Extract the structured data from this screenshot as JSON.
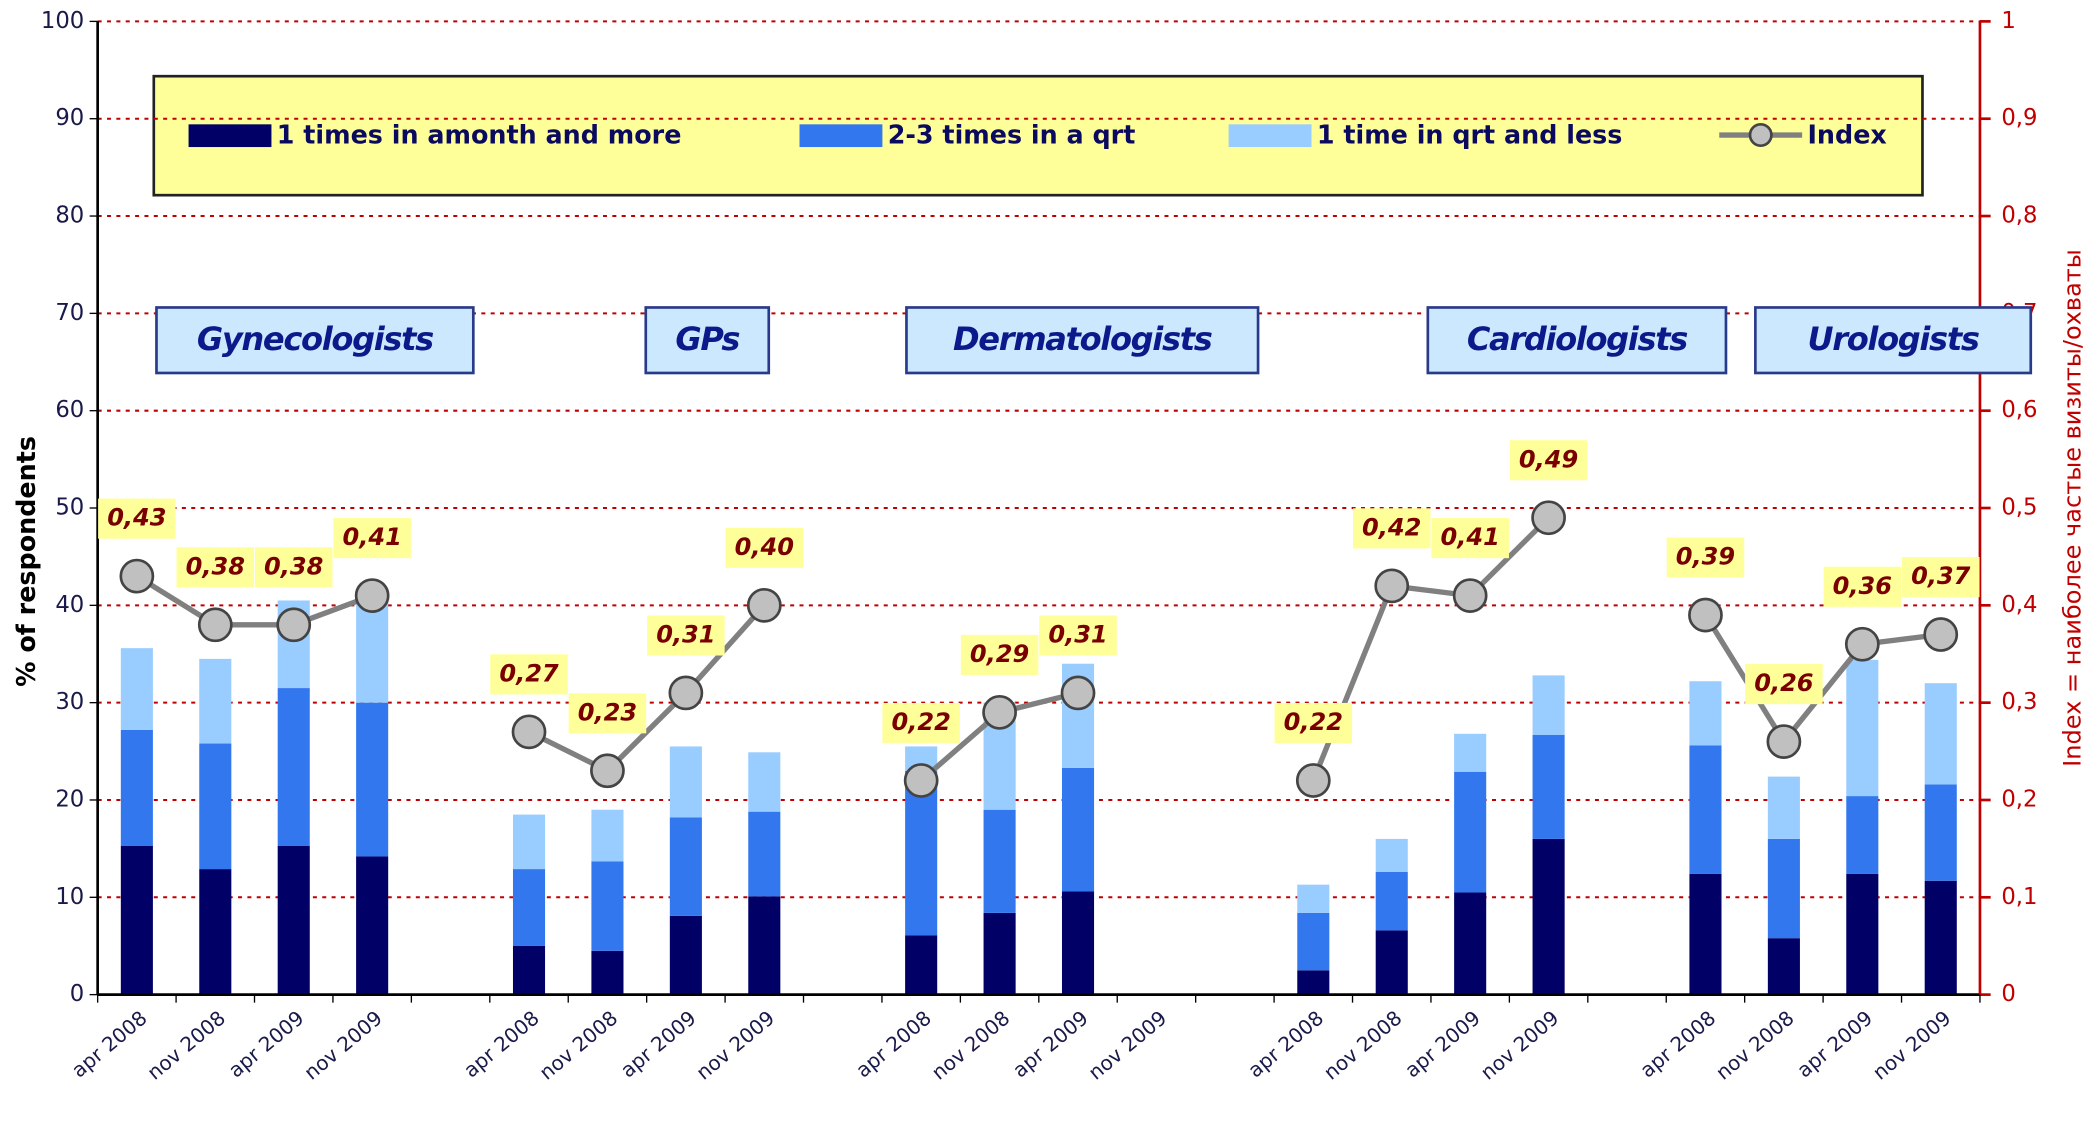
{
  "chart_data": {
    "type": "bar",
    "categories": [
      "apr 2008",
      "nov 2008",
      "apr 2009",
      "nov 2009",
      null,
      "apr 2008",
      "nov 2008",
      "apr 2009",
      "nov 2009",
      null,
      "apr 2008",
      "nov 2008",
      "apr 2009",
      "nov 2009",
      null,
      "apr 2008",
      "nov 2008",
      "apr 2009",
      "nov 2009",
      null,
      "apr 2008",
      "nov 2008",
      "apr 2009",
      "nov 2009"
    ],
    "series": [
      {
        "name": "1 times in amonth and more",
        "color": "#000066",
        "values": [
          15.3,
          12.9,
          15.3,
          14.2,
          null,
          5.0,
          4.5,
          8.1,
          10.1,
          null,
          6.1,
          8.4,
          10.6,
          null,
          null,
          2.5,
          6.6,
          10.5,
          16.0,
          null,
          12.4,
          5.8,
          12.4,
          11.7
        ]
      },
      {
        "name": "2-3 times in a qrt",
        "color": "#3377ee",
        "values": [
          11.9,
          12.9,
          16.2,
          15.8,
          null,
          7.9,
          9.2,
          10.1,
          8.7,
          null,
          16.9,
          10.6,
          12.7,
          null,
          null,
          5.9,
          6.0,
          12.4,
          10.7,
          null,
          13.2,
          10.2,
          8.0,
          9.9
        ]
      },
      {
        "name": "1 time in qrt and less",
        "color": "#99ccff",
        "values": [
          8.4,
          8.7,
          9.0,
          11.0,
          null,
          5.6,
          5.3,
          7.3,
          6.1,
          null,
          2.5,
          11.0,
          10.7,
          null,
          null,
          2.9,
          3.4,
          3.9,
          6.1,
          null,
          6.6,
          6.4,
          14.0,
          10.4
        ]
      },
      {
        "name": "Index",
        "type": "line",
        "axis": "y2",
        "color": "#808080",
        "values": [
          0.43,
          0.38,
          0.38,
          0.41,
          null,
          0.27,
          0.23,
          0.31,
          0.4,
          null,
          0.22,
          0.29,
          0.31,
          null,
          null,
          0.22,
          0.42,
          0.41,
          0.49,
          null,
          0.39,
          0.26,
          0.36,
          0.37
        ],
        "value_labels": [
          "0,43",
          "0,38",
          "0,38",
          "0,41",
          null,
          "0,27",
          "0,23",
          "0,31",
          "0,40",
          null,
          "0,22",
          "0,29",
          "0,31",
          null,
          null,
          "0,22",
          "0,42",
          "0,41",
          "0,49",
          null,
          "0,39",
          "0,26",
          "0,36",
          "0,37"
        ]
      }
    ],
    "annotations": [
      "Gynecologists",
      "GPs",
      "Dermatologists",
      "Cardiologists",
      "Urologists"
    ],
    "ylabel": "% of respondents",
    "y2label": "Index = наиболее частые визиты/охваты",
    "ylim": [
      0,
      100
    ],
    "yticks": [
      0,
      10,
      20,
      30,
      40,
      50,
      60,
      70,
      80,
      90,
      100
    ],
    "y2lim": [
      0,
      1
    ],
    "y2ticks": [
      0,
      {
        "value": 0.1,
        "label": "0,1"
      },
      {
        "value": 0.2,
        "label": "0,2"
      },
      {
        "value": 0.3,
        "label": "0,3"
      },
      {
        "value": 0.4,
        "label": "0,4"
      },
      {
        "value": 0.5,
        "label": "0,5"
      },
      {
        "value": 0.6,
        "label": "0,6"
      },
      {
        "value": 0.7,
        "label": "0,7"
      },
      {
        "value": 0.8,
        "label": "0,8"
      },
      {
        "value": 0.9,
        "label": "0,9"
      },
      1
    ],
    "grid": true
  }
}
